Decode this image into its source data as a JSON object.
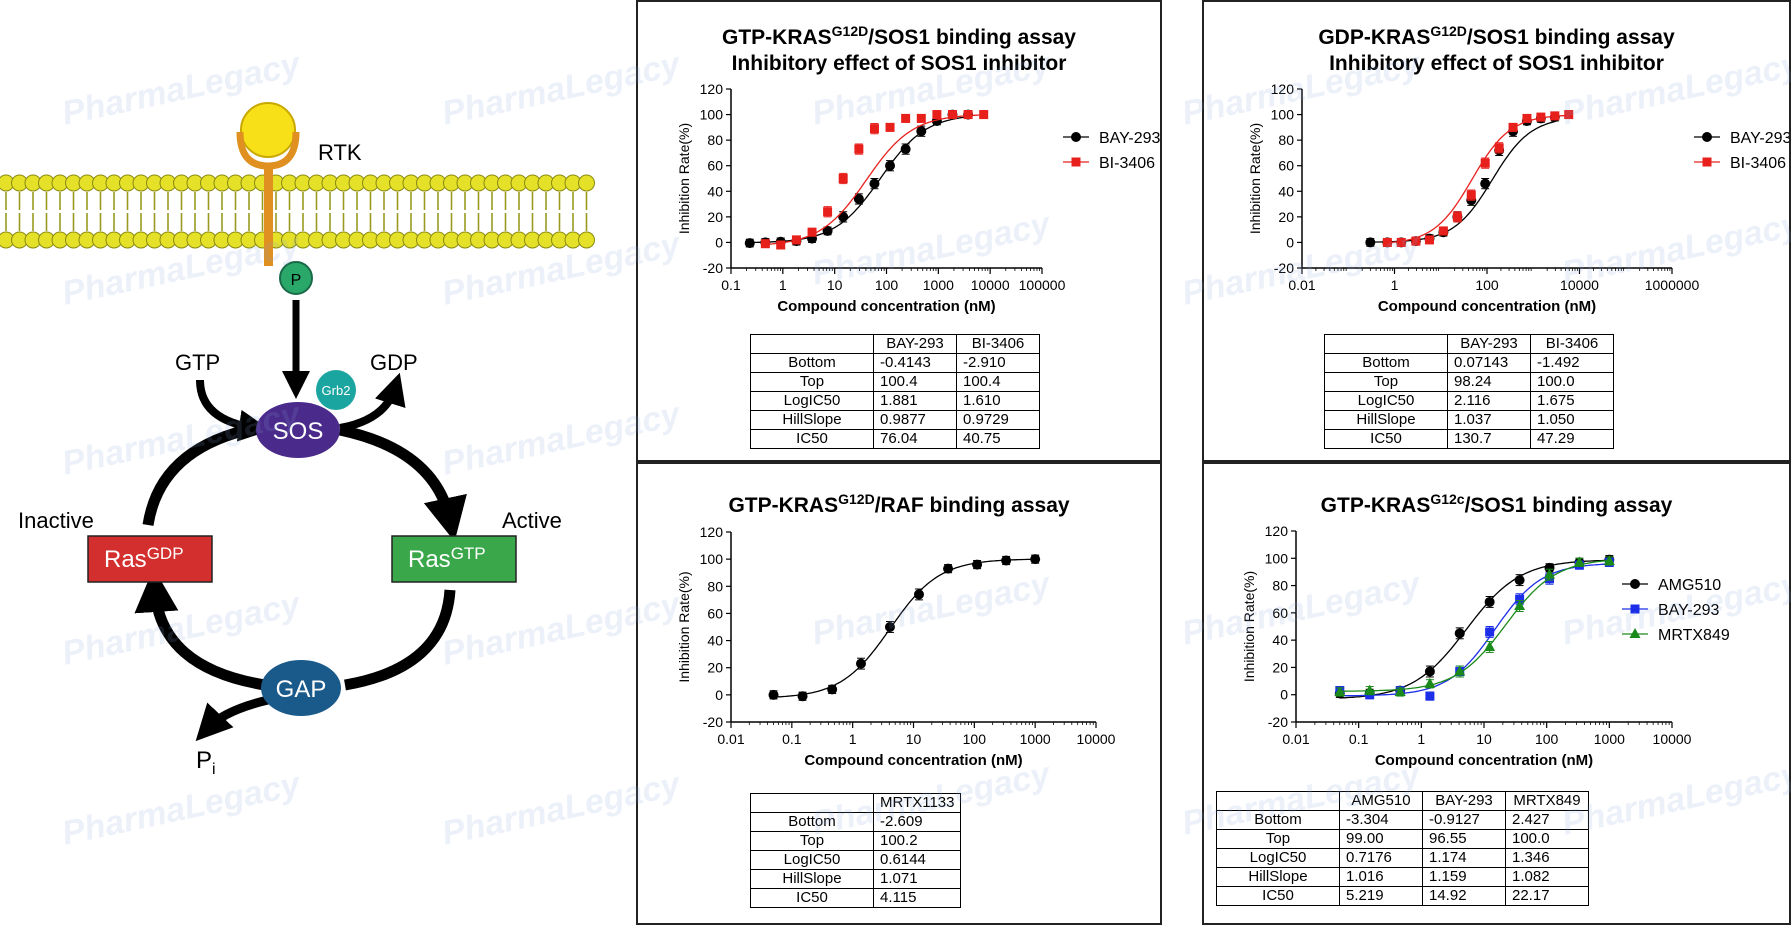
{
  "diagram": {
    "rtk": "RTK",
    "p": "P",
    "gtp": "GTP",
    "gdp": "GDP",
    "grb2": "Grb2",
    "sos": "SOS",
    "inactive": "Inactive",
    "active": "Active",
    "ras_gdp": "Ras",
    "ras_gdp_sup": "GDP",
    "ras_gtp": "Ras",
    "ras_gtp_sup": "GTP",
    "gap": "GAP",
    "pi": "P",
    "pi_sub": "i"
  },
  "watermark": "PharmaLegacy",
  "colors": {
    "black_series": "#000000",
    "red_series": "#e8201c",
    "blue_series": "#1c2ee8",
    "green_series": "#1a8a1a",
    "ras_gdp": "#d32f2f",
    "ras_gtp": "#3aa84a",
    "sos": "#4a2a8a",
    "gap": "#1a5a8a",
    "grb2": "#1aa5a0",
    "membrane": "#e5e028"
  },
  "chart_data": [
    {
      "id": "p1",
      "type": "scatter",
      "title_parts": [
        "GTP-KRAS",
        "G12D",
        "/SOS1 binding assay"
      ],
      "title_line2": "Inhibitory effect of SOS1 inhibitor",
      "xlabel": "Compound concentration (nM)",
      "ylabel": "Inhibition Rate(%)",
      "xscale": "log",
      "xlim": [
        0.1,
        100000
      ],
      "xticks": [
        "0.1",
        "1",
        "10",
        "100",
        "1000",
        "10000",
        "100000"
      ],
      "ylim": [
        -20,
        120
      ],
      "yticks": [
        "-20",
        "0",
        "20",
        "40",
        "60",
        "80",
        "100",
        "120"
      ],
      "legend": "right",
      "series": [
        {
          "name": "BAY-293",
          "marker": "circle",
          "color": "#000000",
          "bottom": -0.4143,
          "top": 100.4,
          "logic50": 1.881,
          "hill": 0.9877,
          "x": [
            0.23,
            0.46,
            0.91,
            1.83,
            3.66,
            7.3,
            14.6,
            29.3,
            58.6,
            117,
            234,
            469,
            938,
            1875,
            3750
          ],
          "y": [
            -0.5,
            0,
            0.5,
            1,
            3,
            9,
            20,
            34,
            46,
            60,
            73,
            87,
            95,
            100,
            100
          ]
        },
        {
          "name": "BI-3406",
          "marker": "square",
          "color": "#e8201c",
          "bottom": -2.91,
          "top": 100.4,
          "logic50": 1.61,
          "hill": 0.9729,
          "x": [
            0.46,
            0.91,
            1.83,
            3.66,
            7.3,
            14.6,
            29.3,
            58.6,
            117,
            234,
            469,
            938,
            1875,
            3750,
            7500
          ],
          "y": [
            -1,
            -2,
            2,
            8,
            24,
            50,
            73,
            89,
            90,
            97,
            97,
            100,
            100,
            100,
            100
          ]
        }
      ],
      "table": {
        "headers": [
          "",
          "BAY-293",
          "BI-3406"
        ],
        "rows": [
          [
            "Bottom",
            "-0.4143",
            "-2.910"
          ],
          [
            "Top",
            "100.4",
            "100.4"
          ],
          [
            "LogIC50",
            "1.881",
            "1.610"
          ],
          [
            "HillSlope",
            "0.9877",
            "0.9729"
          ],
          [
            "IC50",
            "76.04",
            "40.75"
          ]
        ]
      }
    },
    {
      "id": "p2",
      "type": "scatter",
      "title_parts": [
        "GDP-KRAS",
        "G12D",
        "/SOS1 binding assay"
      ],
      "title_line2": "Inhibitory effect of SOS1 inhibitor",
      "xlabel": "Compound concentration (nM)",
      "ylabel": "Inhibition Rate(%)",
      "xscale": "log",
      "xlim": [
        0.01,
        1000000
      ],
      "xticks": [
        "0.01",
        "1",
        "100",
        "10000",
        "1000000"
      ],
      "ylim": [
        -20,
        120
      ],
      "yticks": [
        "-20",
        "0",
        "20",
        "40",
        "60",
        "80",
        "100",
        "120"
      ],
      "legend": "right",
      "series": [
        {
          "name": "BAY-293",
          "marker": "circle",
          "color": "#000000",
          "bottom": 0.07143,
          "top": 98.24,
          "logic50": 2.116,
          "hill": 1.037,
          "x": [
            0.3,
            0.7,
            1.4,
            2.9,
            5.7,
            11.4,
            22.9,
            45.7,
            91.4,
            183,
            366,
            731,
            1462,
            2925
          ],
          "y": [
            0,
            0,
            0,
            1,
            3,
            8,
            20,
            33,
            46,
            72,
            87,
            95,
            97,
            98
          ]
        },
        {
          "name": "BI-3406",
          "marker": "square",
          "color": "#e8201c",
          "bottom": -1.492,
          "top": 100.0,
          "logic50": 1.675,
          "hill": 1.05,
          "x": [
            0.7,
            1.4,
            2.9,
            5.7,
            11.4,
            22.9,
            45.7,
            91.4,
            183,
            366,
            731,
            1462,
            2925,
            5850
          ],
          "y": [
            0,
            0,
            1,
            2,
            9,
            20,
            37,
            62,
            74,
            90,
            97,
            98,
            99,
            100
          ]
        }
      ],
      "table": {
        "headers": [
          "",
          "BAY-293",
          "BI-3406"
        ],
        "rows": [
          [
            "Bottom",
            "0.07143",
            "-1.492"
          ],
          [
            "Top",
            "98.24",
            "100.0"
          ],
          [
            "LogIC50",
            "2.116",
            "1.675"
          ],
          [
            "HillSlope",
            "1.037",
            "1.050"
          ],
          [
            "IC50",
            "130.7",
            "47.29"
          ]
        ]
      }
    },
    {
      "id": "p3",
      "type": "scatter",
      "title_parts": [
        "GTP-KRAS",
        "G12D",
        "/RAF binding assay"
      ],
      "title_line2": "",
      "xlabel": "Compound concentration (nM)",
      "ylabel": "Inhibition Rate(%)",
      "xscale": "log",
      "xlim": [
        0.01,
        10000
      ],
      "xticks": [
        "0.01",
        "0.1",
        "1",
        "10",
        "100",
        "1000",
        "10000"
      ],
      "ylim": [
        -20,
        120
      ],
      "yticks": [
        "-20",
        "0",
        "20",
        "40",
        "60",
        "80",
        "100",
        "120"
      ],
      "legend": "none",
      "series": [
        {
          "name": "MRTX1133",
          "marker": "circle",
          "color": "#000000",
          "bottom": -2.609,
          "top": 100.2,
          "logic50": 0.6144,
          "hill": 1.071,
          "x": [
            0.05,
            0.15,
            0.46,
            1.37,
            4.1,
            12.3,
            37,
            111,
            333,
            1000
          ],
          "y": [
            0,
            -1,
            4,
            23,
            50,
            74,
            93,
            96,
            99,
            100
          ]
        }
      ],
      "table": {
        "headers": [
          "",
          "MRTX1133"
        ],
        "rows": [
          [
            "Bottom",
            "-2.609"
          ],
          [
            "Top",
            "100.2"
          ],
          [
            "LogIC50",
            "0.6144"
          ],
          [
            "HillSlope",
            "1.071"
          ],
          [
            "IC50",
            "4.115"
          ]
        ]
      }
    },
    {
      "id": "p4",
      "type": "scatter",
      "title_parts": [
        "GTP-KRAS",
        "G12c",
        "/SOS1 binding assay"
      ],
      "title_line2": "",
      "xlabel": "Compound concentration (nM)",
      "ylabel": "Inhibition Rate(%)",
      "xscale": "log",
      "xlim": [
        0.01,
        10000
      ],
      "xticks": [
        "0.01",
        "0.1",
        "1",
        "10",
        "100",
        "1000",
        "10000"
      ],
      "ylim": [
        -20,
        120
      ],
      "yticks": [
        "-20",
        "0",
        "20",
        "40",
        "60",
        "80",
        "100",
        "120"
      ],
      "legend": "right",
      "series": [
        {
          "name": "AMG510",
          "marker": "circle",
          "color": "#000000",
          "bottom": -3.304,
          "top": 99.0,
          "logic50": 0.7176,
          "hill": 1.016,
          "x": [
            0.05,
            0.15,
            0.46,
            1.37,
            4.1,
            12.3,
            37,
            111,
            333,
            1000
          ],
          "y": [
            1,
            1,
            3,
            17,
            45,
            68,
            84,
            93,
            97,
            99
          ]
        },
        {
          "name": "BAY-293",
          "marker": "square",
          "color": "#1c2ee8",
          "bottom": -0.9127,
          "top": 96.55,
          "logic50": 1.174,
          "hill": 1.159,
          "x": [
            0.05,
            0.15,
            0.46,
            1.37,
            4.1,
            12.3,
            37,
            111,
            333,
            1000
          ],
          "y": [
            3,
            0,
            3,
            -1,
            17,
            46,
            70,
            85,
            95,
            97
          ]
        },
        {
          "name": "MRTX849",
          "marker": "triangle",
          "color": "#1a8a1a",
          "bottom": 2.427,
          "top": 100.0,
          "logic50": 1.346,
          "hill": 1.082,
          "x": [
            0.05,
            0.15,
            0.46,
            1.37,
            4.1,
            12.3,
            37,
            111,
            333,
            1000
          ],
          "y": [
            2,
            3,
            2,
            8,
            17,
            35,
            65,
            88,
            97,
            98
          ]
        }
      ],
      "table": {
        "headers": [
          "",
          "AMG510",
          "BAY-293",
          "MRTX849"
        ],
        "rows": [
          [
            "Bottom",
            "-3.304",
            "-0.9127",
            "2.427"
          ],
          [
            "Top",
            "99.00",
            "96.55",
            "100.0"
          ],
          [
            "LogIC50",
            "0.7176",
            "1.174",
            "1.346"
          ],
          [
            "HillSlope",
            "1.016",
            "1.159",
            "1.082"
          ],
          [
            "IC50",
            "5.219",
            "14.92",
            "22.17"
          ]
        ]
      }
    }
  ]
}
